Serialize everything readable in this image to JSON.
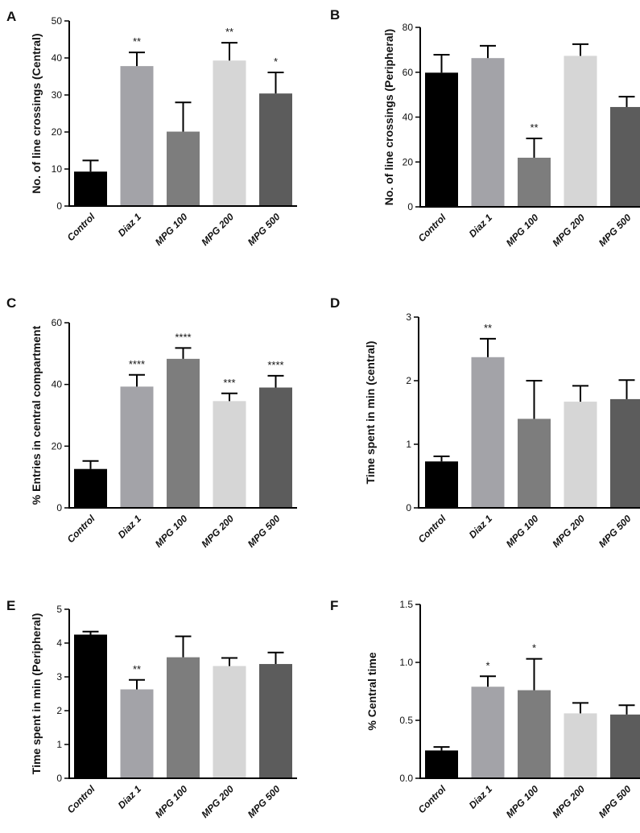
{
  "chart_data": [
    {
      "panel": "A",
      "type": "bar",
      "ylabel": "No. of line crossings (Central)",
      "ylim": [
        0,
        50
      ],
      "yticks": [
        0,
        10,
        20,
        30,
        40,
        50
      ],
      "categories": [
        "Control",
        "Diaz 1",
        "MPG 100",
        "MPG 200",
        "MPG 500"
      ],
      "values": [
        9.3,
        37.8,
        20.1,
        39.3,
        30.4
      ],
      "errors": [
        3.0,
        3.7,
        7.9,
        4.8,
        5.7
      ],
      "significance": [
        "",
        "**",
        "",
        "**",
        "*"
      ],
      "colors": [
        "#000000",
        "#a3a3a8",
        "#7d7d7d",
        "#d6d6d6",
        "#5c5c5c"
      ]
    },
    {
      "panel": "B",
      "type": "bar",
      "ylabel": "No. of line crossings (Peripheral)",
      "ylim": [
        0,
        80
      ],
      "yticks": [
        0,
        20,
        40,
        60,
        80
      ],
      "categories": [
        "Control",
        "Diaz 1",
        "MPG 100",
        "MPG 200",
        "MPG 500"
      ],
      "values": [
        59.8,
        66.3,
        21.9,
        67.3,
        44.5
      ],
      "errors": [
        8.0,
        5.5,
        8.6,
        5.2,
        4.6
      ],
      "significance": [
        "",
        "",
        "**",
        "",
        ""
      ],
      "colors": [
        "#000000",
        "#a3a3a8",
        "#7d7d7d",
        "#d6d6d6",
        "#5c5c5c"
      ]
    },
    {
      "panel": "C",
      "type": "bar",
      "ylabel": "% Entries in central compartment",
      "ylim": [
        0,
        60
      ],
      "yticks": [
        0,
        20,
        40,
        60
      ],
      "categories": [
        "Control",
        "Diaz 1",
        "MPG 100",
        "MPG 200",
        "MPG 500"
      ],
      "values": [
        12.6,
        39.3,
        48.3,
        34.6,
        39.0
      ],
      "errors": [
        2.6,
        3.8,
        3.5,
        2.5,
        3.8
      ],
      "significance": [
        "",
        "****",
        "****",
        "***",
        "****"
      ],
      "colors": [
        "#000000",
        "#a3a3a8",
        "#7d7d7d",
        "#d6d6d6",
        "#5c5c5c"
      ]
    },
    {
      "panel": "D",
      "type": "bar",
      "ylabel": "Time spent in min (central)",
      "ylim": [
        0,
        3
      ],
      "yticks": [
        0,
        1,
        2,
        3
      ],
      "categories": [
        "Control",
        "Diaz 1",
        "MPG 100",
        "MPG 200",
        "MPG 500"
      ],
      "values": [
        0.73,
        2.37,
        1.4,
        1.67,
        1.71
      ],
      "errors": [
        0.08,
        0.29,
        0.6,
        0.25,
        0.3
      ],
      "significance": [
        "",
        "**",
        "",
        "",
        ""
      ],
      "colors": [
        "#000000",
        "#a3a3a8",
        "#7d7d7d",
        "#d6d6d6",
        "#5c5c5c"
      ]
    },
    {
      "panel": "E",
      "type": "bar",
      "ylabel": "Time spent in min (Peripheral)",
      "ylim": [
        0,
        5
      ],
      "yticks": [
        0,
        1,
        2,
        3,
        4,
        5
      ],
      "categories": [
        "Control",
        "Diaz 1",
        "MPG 100",
        "MPG 200",
        "MPG 500"
      ],
      "values": [
        4.25,
        2.63,
        3.58,
        3.32,
        3.38
      ],
      "errors": [
        0.09,
        0.28,
        0.62,
        0.24,
        0.34
      ],
      "significance": [
        "",
        "**",
        "",
        "",
        ""
      ],
      "colors": [
        "#000000",
        "#a3a3a8",
        "#7d7d7d",
        "#d6d6d6",
        "#5c5c5c"
      ]
    },
    {
      "panel": "F",
      "type": "bar",
      "ylabel": "% Central time",
      "ylim": [
        0,
        1.5
      ],
      "yticks": [
        "0.0",
        "0.5",
        "1.0",
        "1.5"
      ],
      "categories": [
        "Control",
        "Diaz 1",
        "MPG 100",
        "MPG 200",
        "MPG 500"
      ],
      "values": [
        0.24,
        0.79,
        0.76,
        0.56,
        0.55
      ],
      "errors": [
        0.03,
        0.09,
        0.27,
        0.09,
        0.08
      ],
      "significance": [
        "",
        "*",
        "*",
        "",
        ""
      ],
      "colors": [
        "#000000",
        "#a3a3a8",
        "#7d7d7d",
        "#d6d6d6",
        "#5c5c5c"
      ]
    }
  ]
}
